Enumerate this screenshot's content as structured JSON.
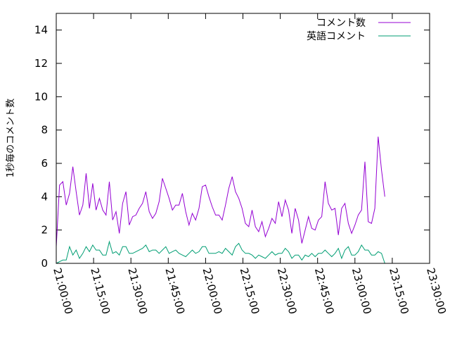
{
  "chart_data": {
    "type": "line",
    "ylabel": "1秒毎のコメント数",
    "xlabel": "",
    "ylim": [
      0,
      15
    ],
    "yticks": [
      0,
      2,
      4,
      6,
      8,
      10,
      12,
      14
    ],
    "x_range": [
      "21:00:00",
      "23:30:00"
    ],
    "xtick_labels": [
      "21:00:00",
      "21:15:00",
      "21:30:00",
      "21:45:00",
      "22:00:00",
      "22:15:00",
      "22:30:00",
      "22:45:00",
      "23:00:00",
      "23:15:00",
      "23:30:00"
    ],
    "grid": false,
    "legend": "top-right",
    "series": [
      {
        "name": "コメント数",
        "color": "#9400d3",
        "points": [
          [
            "21:00:00",
            1.0
          ],
          [
            "21:01:20",
            4.7
          ],
          [
            "21:02:40",
            4.9
          ],
          [
            "21:04:00",
            3.5
          ],
          [
            "21:05:20",
            4.2
          ],
          [
            "21:06:40",
            5.8
          ],
          [
            "21:08:00",
            4.3
          ],
          [
            "21:09:20",
            2.9
          ],
          [
            "21:10:40",
            3.5
          ],
          [
            "21:12:00",
            5.4
          ],
          [
            "21:13:20",
            3.3
          ],
          [
            "21:14:40",
            4.8
          ],
          [
            "21:16:00",
            3.2
          ],
          [
            "21:17:20",
            3.9
          ],
          [
            "21:18:40",
            3.2
          ],
          [
            "21:20:00",
            2.9
          ],
          [
            "21:21:20",
            4.9
          ],
          [
            "21:22:40",
            2.6
          ],
          [
            "21:24:00",
            3.1
          ],
          [
            "21:25:20",
            1.8
          ],
          [
            "21:26:40",
            3.6
          ],
          [
            "21:28:00",
            4.3
          ],
          [
            "21:29:20",
            2.3
          ],
          [
            "21:30:40",
            2.8
          ],
          [
            "21:32:00",
            2.9
          ],
          [
            "21:33:20",
            3.3
          ],
          [
            "21:34:40",
            3.6
          ],
          [
            "21:36:00",
            4.3
          ],
          [
            "21:37:20",
            3.1
          ],
          [
            "21:38:40",
            2.7
          ],
          [
            "21:40:00",
            3.0
          ],
          [
            "21:41:20",
            3.7
          ],
          [
            "21:42:40",
            5.1
          ],
          [
            "21:44:00",
            4.5
          ],
          [
            "21:45:20",
            3.9
          ],
          [
            "21:46:40",
            3.2
          ],
          [
            "21:48:00",
            3.5
          ],
          [
            "21:49:20",
            3.5
          ],
          [
            "21:50:40",
            4.2
          ],
          [
            "21:52:00",
            3.1
          ],
          [
            "21:53:20",
            2.3
          ],
          [
            "21:54:40",
            3.0
          ],
          [
            "21:56:00",
            2.6
          ],
          [
            "21:57:20",
            3.3
          ],
          [
            "21:58:40",
            4.6
          ],
          [
            "22:00:00",
            4.7
          ],
          [
            "22:01:20",
            4.0
          ],
          [
            "22:02:40",
            3.4
          ],
          [
            "22:04:00",
            2.9
          ],
          [
            "22:05:20",
            2.9
          ],
          [
            "22:06:40",
            2.6
          ],
          [
            "22:08:00",
            3.5
          ],
          [
            "22:09:20",
            4.5
          ],
          [
            "22:10:40",
            5.2
          ],
          [
            "22:12:00",
            4.3
          ],
          [
            "22:13:20",
            3.9
          ],
          [
            "22:14:40",
            3.3
          ],
          [
            "22:16:00",
            2.4
          ],
          [
            "22:17:20",
            2.2
          ],
          [
            "22:18:40",
            3.2
          ],
          [
            "22:20:00",
            2.2
          ],
          [
            "22:21:20",
            1.9
          ],
          [
            "22:22:40",
            2.5
          ],
          [
            "22:24:00",
            1.6
          ],
          [
            "22:25:20",
            2.1
          ],
          [
            "22:26:40",
            2.7
          ],
          [
            "22:28:00",
            2.4
          ],
          [
            "22:29:20",
            3.7
          ],
          [
            "22:30:40",
            2.8
          ],
          [
            "22:32:00",
            3.8
          ],
          [
            "22:33:20",
            3.2
          ],
          [
            "22:34:40",
            1.8
          ],
          [
            "22:36:00",
            3.3
          ],
          [
            "22:37:20",
            2.6
          ],
          [
            "22:38:40",
            1.2
          ],
          [
            "22:40:00",
            2.0
          ],
          [
            "22:41:20",
            2.8
          ],
          [
            "22:42:40",
            2.1
          ],
          [
            "22:44:00",
            2.0
          ],
          [
            "22:45:20",
            2.6
          ],
          [
            "22:46:40",
            2.8
          ],
          [
            "22:48:00",
            4.9
          ],
          [
            "22:49:20",
            3.6
          ],
          [
            "22:50:40",
            3.2
          ],
          [
            "22:52:00",
            3.3
          ],
          [
            "22:53:20",
            1.7
          ],
          [
            "22:54:40",
            3.3
          ],
          [
            "22:56:00",
            3.6
          ],
          [
            "22:57:20",
            2.4
          ],
          [
            "22:58:40",
            1.8
          ],
          [
            "23:00:00",
            2.3
          ],
          [
            "23:01:20",
            2.9
          ],
          [
            "23:02:40",
            3.2
          ],
          [
            "23:04:00",
            6.1
          ],
          [
            "23:05:20",
            2.5
          ],
          [
            "23:06:40",
            2.4
          ],
          [
            "23:08:00",
            3.3
          ],
          [
            "23:09:20",
            7.6
          ],
          [
            "23:10:40",
            5.6
          ],
          [
            "23:12:00",
            4.0
          ]
        ]
      },
      {
        "name": "英語コメント",
        "color": "#009e73",
        "points": [
          [
            "21:00:00",
            0.0
          ],
          [
            "21:01:20",
            0.1
          ],
          [
            "21:02:40",
            0.2
          ],
          [
            "21:04:00",
            0.2
          ],
          [
            "21:05:20",
            1.0
          ],
          [
            "21:06:40",
            0.5
          ],
          [
            "21:08:00",
            0.8
          ],
          [
            "21:09:20",
            0.3
          ],
          [
            "21:10:40",
            0.6
          ],
          [
            "21:12:00",
            1.0
          ],
          [
            "21:13:20",
            0.7
          ],
          [
            "21:14:40",
            1.1
          ],
          [
            "21:16:00",
            0.8
          ],
          [
            "21:17:20",
            0.8
          ],
          [
            "21:18:40",
            0.5
          ],
          [
            "21:20:00",
            0.5
          ],
          [
            "21:21:20",
            1.3
          ],
          [
            "21:22:40",
            0.6
          ],
          [
            "21:24:00",
            0.7
          ],
          [
            "21:25:20",
            0.5
          ],
          [
            "21:26:40",
            1.0
          ],
          [
            "21:28:00",
            1.0
          ],
          [
            "21:29:20",
            0.6
          ],
          [
            "21:30:40",
            0.6
          ],
          [
            "21:32:00",
            0.7
          ],
          [
            "21:33:20",
            0.8
          ],
          [
            "21:34:40",
            0.9
          ],
          [
            "21:36:00",
            1.1
          ],
          [
            "21:37:20",
            0.7
          ],
          [
            "21:38:40",
            0.8
          ],
          [
            "21:40:00",
            0.8
          ],
          [
            "21:41:20",
            0.6
          ],
          [
            "21:42:40",
            0.8
          ],
          [
            "21:44:00",
            1.0
          ],
          [
            "21:45:20",
            0.6
          ],
          [
            "21:46:40",
            0.7
          ],
          [
            "21:48:00",
            0.8
          ],
          [
            "21:49:20",
            0.6
          ],
          [
            "21:50:40",
            0.5
          ],
          [
            "21:52:00",
            0.4
          ],
          [
            "21:53:20",
            0.6
          ],
          [
            "21:54:40",
            0.8
          ],
          [
            "21:56:00",
            0.6
          ],
          [
            "21:57:20",
            0.7
          ],
          [
            "21:58:40",
            1.0
          ],
          [
            "22:00:00",
            1.0
          ],
          [
            "22:01:20",
            0.6
          ],
          [
            "22:02:40",
            0.6
          ],
          [
            "22:04:00",
            0.6
          ],
          [
            "22:05:20",
            0.7
          ],
          [
            "22:06:40",
            0.6
          ],
          [
            "22:08:00",
            0.9
          ],
          [
            "22:09:20",
            0.7
          ],
          [
            "22:10:40",
            0.5
          ],
          [
            "22:12:00",
            1.0
          ],
          [
            "22:13:20",
            1.2
          ],
          [
            "22:14:40",
            0.8
          ],
          [
            "22:16:00",
            0.6
          ],
          [
            "22:17:20",
            0.6
          ],
          [
            "22:18:40",
            0.5
          ],
          [
            "22:20:00",
            0.3
          ],
          [
            "22:21:20",
            0.5
          ],
          [
            "22:22:40",
            0.4
          ],
          [
            "22:24:00",
            0.3
          ],
          [
            "22:25:20",
            0.5
          ],
          [
            "22:26:40",
            0.7
          ],
          [
            "22:28:00",
            0.5
          ],
          [
            "22:29:20",
            0.6
          ],
          [
            "22:30:40",
            0.6
          ],
          [
            "22:32:00",
            0.9
          ],
          [
            "22:33:20",
            0.7
          ],
          [
            "22:34:40",
            0.3
          ],
          [
            "22:36:00",
            0.5
          ],
          [
            "22:37:20",
            0.5
          ],
          [
            "22:38:40",
            0.2
          ],
          [
            "22:40:00",
            0.5
          ],
          [
            "22:41:20",
            0.4
          ],
          [
            "22:42:40",
            0.6
          ],
          [
            "22:44:00",
            0.4
          ],
          [
            "22:45:20",
            0.6
          ],
          [
            "22:46:40",
            0.6
          ],
          [
            "22:48:00",
            0.8
          ],
          [
            "22:49:20",
            0.6
          ],
          [
            "22:50:40",
            0.4
          ],
          [
            "22:52:00",
            0.6
          ],
          [
            "22:53:20",
            0.9
          ],
          [
            "22:54:40",
            0.3
          ],
          [
            "22:56:00",
            0.8
          ],
          [
            "22:57:20",
            1.0
          ],
          [
            "22:58:40",
            0.5
          ],
          [
            "23:00:00",
            0.5
          ],
          [
            "23:01:20",
            0.7
          ],
          [
            "23:02:40",
            1.1
          ],
          [
            "23:04:00",
            0.8
          ],
          [
            "23:05:20",
            0.8
          ],
          [
            "23:06:40",
            0.5
          ],
          [
            "23:08:00",
            0.5
          ],
          [
            "23:09:20",
            0.7
          ],
          [
            "23:10:40",
            0.6
          ],
          [
            "23:12:00",
            0.0
          ]
        ]
      }
    ]
  }
}
